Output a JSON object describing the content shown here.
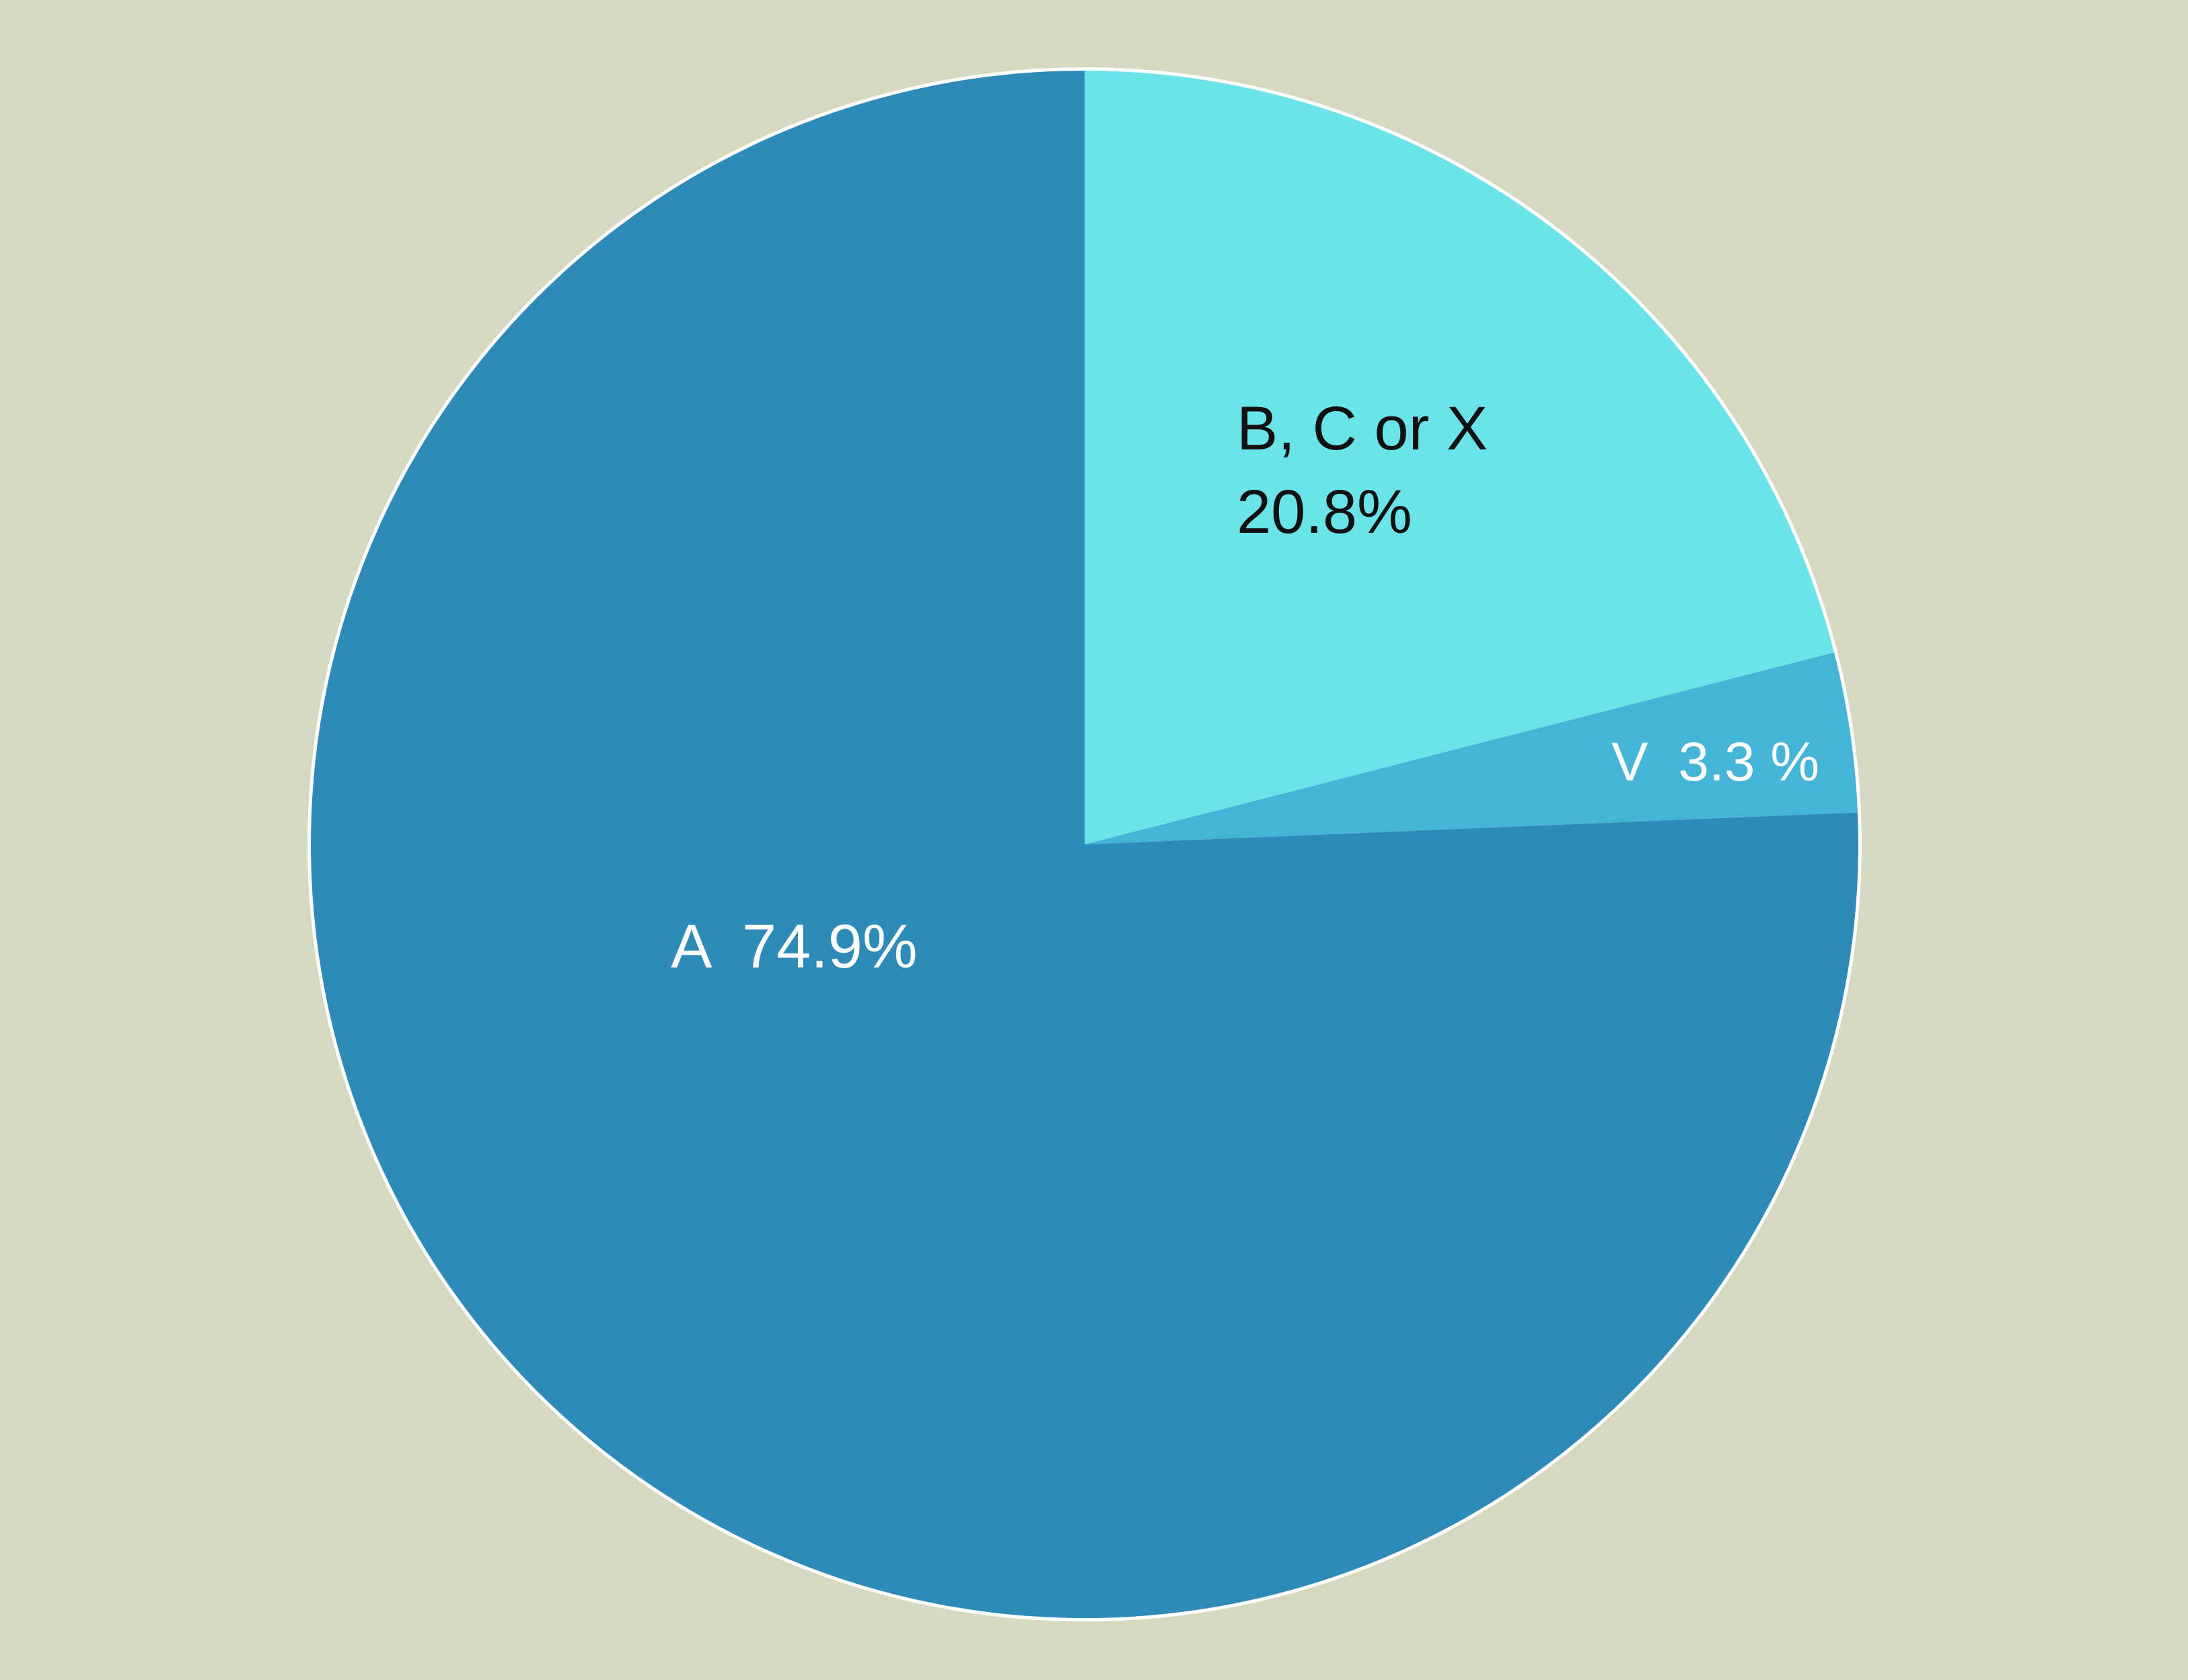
{
  "background_color": "#d6d8c1",
  "chart_data": {
    "type": "pie",
    "title": "",
    "start_angle_deg": 0,
    "direction": "clockwise",
    "slices": [
      {
        "label": "B, C or X",
        "value": 20.8,
        "value_text": "20.8%",
        "color": "#6ae4e8",
        "text_color": "#111111"
      },
      {
        "label": "V",
        "value": 3.3,
        "value_text": "3.3 %",
        "color": "#44b5d6",
        "text_color": "#ffffff"
      },
      {
        "label": "A",
        "value": 74.9,
        "value_text": "74.9%",
        "color": "#2e8ab8",
        "text_color": "#ffffff"
      }
    ]
  }
}
